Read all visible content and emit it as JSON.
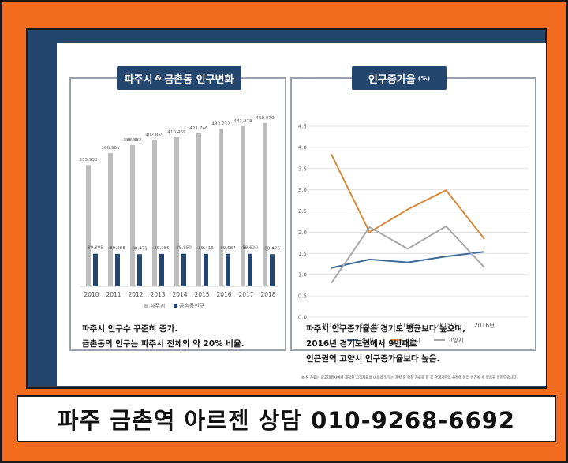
{
  "banner": {
    "text": "파주 금촌역 아르젠 상담 010-9268-6692"
  },
  "left_panel": {
    "title_main": "파주시",
    "title_amp": "&",
    "title_rest": "금촌동 인구변화",
    "notes": [
      "파주시 인구수 꾸준히 증가.",
      "금촌동의 인구는 파주시 전체의 약 20% 비율."
    ]
  },
  "right_panel": {
    "title": "인구증가율",
    "unit": "(%)",
    "notes": [
      "파주시 인구증가율은 경기도 평균보다 높으며,",
      "2016년 경기도권에서 9번째로",
      "인근권역 고양시 인구증가율보다 높음."
    ]
  },
  "footnote": "※ 본 자료는 광고대행사에서 제작된 고객자료의 내용의 일부는 계획 중 예정 자료로 향 후 관계기관의 사정에 따라 변경될 수 있음을 알려드립니다.",
  "colors": {
    "navy": "#24456e",
    "gray_bar": "#bdbdbd",
    "orange": "#d68a3a",
    "blue": "#3d6a9a",
    "gray_line": "#a8a8a8"
  },
  "chart_data": [
    {
      "type": "bar",
      "categories": [
        "2010",
        "2011",
        "2012",
        "2013",
        "2014",
        "2015",
        "2016",
        "2017",
        "2018"
      ],
      "series": [
        {
          "name": "파주시",
          "color": "#bdbdbd",
          "values": [
            333938,
            366961,
            388882,
            402859,
            410469,
            421746,
            433732,
            441273,
            450079
          ],
          "labels": [
            "333,938",
            "366,961",
            "388,882",
            "402,859",
            "410,469",
            "421,746",
            "433,732",
            "441,273",
            "450,079"
          ]
        },
        {
          "name": "금촌동인구",
          "color": "#24456e",
          "values": [
            89805,
            89386,
            88471,
            89285,
            89850,
            89416,
            89587,
            89620,
            88476
          ],
          "labels": [
            "89,805",
            "89,386",
            "88,471",
            "89,285",
            "89,850",
            "89,416",
            "89,587",
            "89,620",
            "88,476"
          ]
        }
      ],
      "ylim": [
        0,
        480000
      ],
      "legend": "bottom",
      "grid": false
    },
    {
      "type": "line",
      "categories": [
        "2012년",
        "2013년",
        "2014년",
        "2015년",
        "2016년"
      ],
      "series": [
        {
          "name": "경기도",
          "color": "#3d6a9a",
          "values": [
            1.16,
            1.36,
            1.29,
            1.43,
            1.54
          ]
        },
        {
          "name": "파주시",
          "color": "#d68a3a",
          "values": [
            3.84,
            2.0,
            2.54,
            2.99,
            1.84
          ]
        },
        {
          "name": "고양시",
          "color": "#a8a8a8",
          "values": [
            0.8,
            2.12,
            1.61,
            2.14,
            1.17
          ]
        }
      ],
      "yticks": [
        "0.0",
        "0.5",
        "1.0",
        "1.5",
        "2.0",
        "2.5",
        "3.0",
        "3.5",
        "4.0",
        "4.5"
      ],
      "ylim": [
        0,
        4.5
      ],
      "legend": "bottom",
      "grid": true
    }
  ]
}
